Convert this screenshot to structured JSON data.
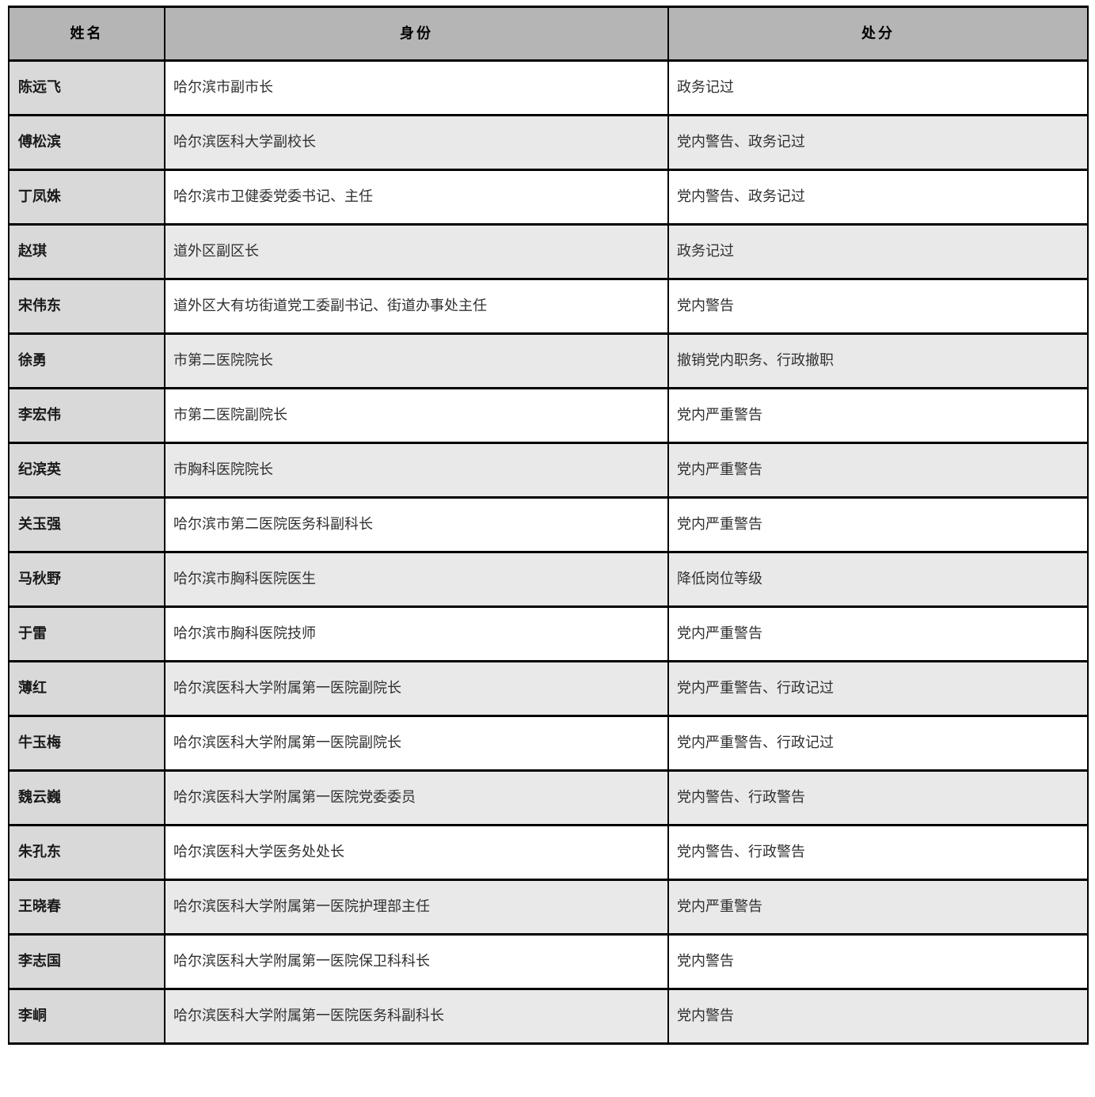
{
  "colors": {
    "header_bg": "#b5b5b5",
    "name_col_bg": "#d9d9d9",
    "row_bg": "#ffffff",
    "row_alt_bg": "#e9e9e9",
    "border": "#000000",
    "text": "#303030"
  },
  "table": {
    "columns": [
      {
        "key": "name",
        "label": "姓名"
      },
      {
        "key": "identity",
        "label": "身份"
      },
      {
        "key": "punishment",
        "label": "处分"
      }
    ],
    "rows": [
      {
        "name": "陈远飞",
        "identity": "哈尔滨市副市长",
        "punishment": "政务记过"
      },
      {
        "name": "傅松滨",
        "identity": "哈尔滨医科大学副校长",
        "punishment": "党内警告、政务记过"
      },
      {
        "name": "丁凤姝",
        "identity": "哈尔滨市卫健委党委书记、主任",
        "punishment": "党内警告、政务记过"
      },
      {
        "name": "赵琪",
        "identity": "道外区副区长",
        "punishment": "政务记过"
      },
      {
        "name": "宋伟东",
        "identity": "道外区大有坊街道党工委副书记、街道办事处主任",
        "punishment": "党内警告"
      },
      {
        "name": "徐勇",
        "identity": "市第二医院院长",
        "punishment": "撤销党内职务、行政撤职"
      },
      {
        "name": "李宏伟",
        "identity": "市第二医院副院长",
        "punishment": "党内严重警告"
      },
      {
        "name": "纪滨英",
        "identity": "市胸科医院院长",
        "punishment": "党内严重警告"
      },
      {
        "name": "关玉强",
        "identity": "哈尔滨市第二医院医务科副科长",
        "punishment": "党内严重警告"
      },
      {
        "name": "马秋野",
        "identity": "哈尔滨市胸科医院医生",
        "punishment": "降低岗位等级"
      },
      {
        "name": "于雷",
        "identity": "哈尔滨市胸科医院技师",
        "punishment": "党内严重警告"
      },
      {
        "name": "薄红",
        "identity": "哈尔滨医科大学附属第一医院副院长",
        "punishment": "党内严重警告、行政记过"
      },
      {
        "name": "牛玉梅",
        "identity": "哈尔滨医科大学附属第一医院副院长",
        "punishment": "党内严重警告、行政记过"
      },
      {
        "name": "魏云巍",
        "identity": "哈尔滨医科大学附属第一医院党委委员",
        "punishment": "党内警告、行政警告"
      },
      {
        "name": "朱孔东",
        "identity": "哈尔滨医科大学医务处处长",
        "punishment": "党内警告、行政警告"
      },
      {
        "name": "王晓春",
        "identity": "哈尔滨医科大学附属第一医院护理部主任",
        "punishment": "党内严重警告"
      },
      {
        "name": "李志国",
        "identity": "哈尔滨医科大学附属第一医院保卫科科长",
        "punishment": "党内警告"
      },
      {
        "name": "李峒",
        "identity": "哈尔滨医科大学附属第一医院医务科副科长",
        "punishment": "党内警告"
      }
    ]
  }
}
